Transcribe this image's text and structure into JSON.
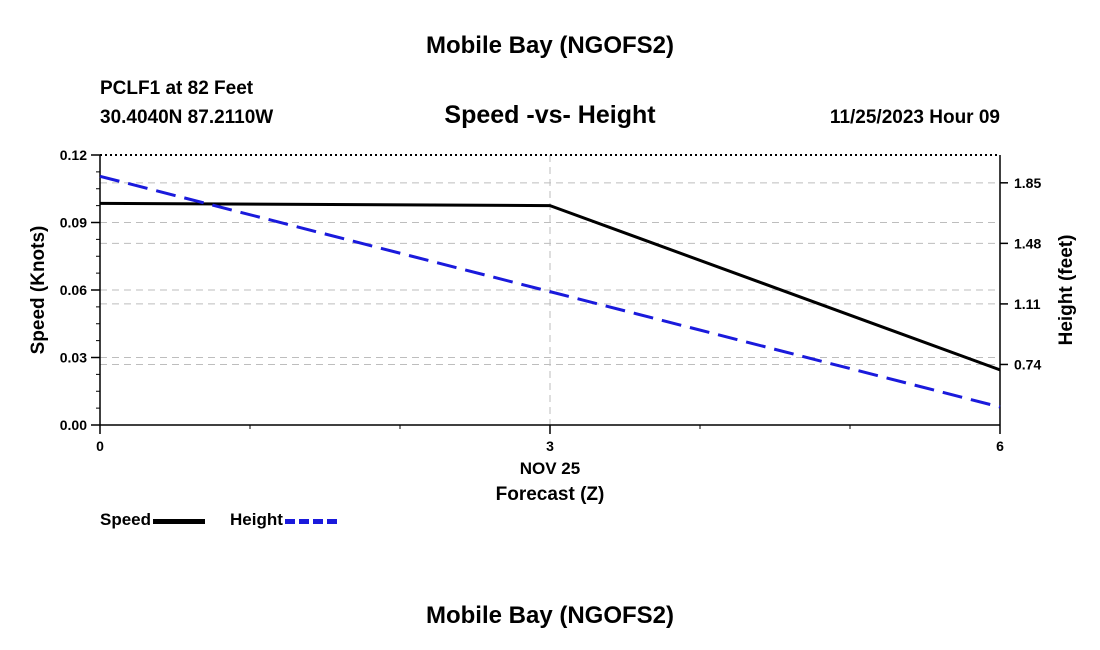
{
  "header": {
    "main_title": "Mobile Bay (NGOFS2)",
    "station_line": "PCLF1 at 82 Feet",
    "coords_line": "30.4040N  87.2110W",
    "datetime": "11/25/2023 Hour 09"
  },
  "footer": {
    "repeat_title": "Mobile Bay (NGOFS2)"
  },
  "chart_data": {
    "type": "line",
    "title": "Speed -vs- Height",
    "xlabel": "Forecast (Z)",
    "x_date_label": "NOV 25",
    "ylabel_left": "Speed (Knots)",
    "ylabel_right": "Height (feet)",
    "x_ticks": [
      "0",
      "3",
      "6"
    ],
    "xlim": [
      0,
      6
    ],
    "left_axis": {
      "ylim": [
        0,
        0.12
      ],
      "ticks": [
        "0.00",
        "0.03",
        "0.06",
        "0.09",
        "0.12"
      ]
    },
    "right_axis": {
      "ylim": [
        0.37,
        2.02
      ],
      "ticks": [
        "0.74",
        "1.11",
        "1.48",
        "1.85"
      ]
    },
    "grid": true,
    "series": [
      {
        "name": "Speed",
        "axis": "left",
        "color": "#000000",
        "dash": "solid",
        "x": [
          0,
          3,
          6
        ],
        "y": [
          0.0985,
          0.0975,
          0.0245
        ]
      },
      {
        "name": "Height",
        "axis": "right",
        "color": "#1a1adc",
        "dash": "dashed",
        "x": [
          0,
          6
        ],
        "y": [
          1.89,
          0.48
        ]
      }
    ]
  }
}
